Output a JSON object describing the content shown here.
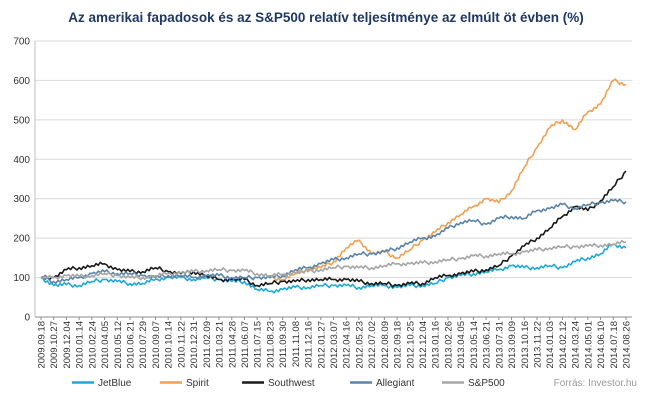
{
  "chart_data": {
    "type": "line",
    "title": "Az amerikai fapadosok és az S&P500 relatív teljesítménye  az elmúlt öt évben (%)",
    "source": "Forrás: Investor.hu",
    "ylim": [
      0,
      700
    ],
    "yticks": [
      "0",
      "100",
      "200",
      "300",
      "400",
      "500",
      "600",
      "700"
    ],
    "grid": true,
    "legend_position": "bottom",
    "x_tick_labels": [
      "2009.09.18",
      "2009.10.27",
      "2009.12.04",
      "2010.01.14",
      "2010.02.24",
      "2010.04.05",
      "2010.05.12",
      "2010.06.21",
      "2010.07.29",
      "2010.09.07",
      "2010.10.14",
      "2010.11.22",
      "2010.12.31",
      "2011.02.09",
      "2011.03.21",
      "2011.04.28",
      "2011.06.07",
      "2011.07.15",
      "2011.08.23",
      "2011.09.30",
      "2011.11.08",
      "2011.12.16",
      "2012.01.27",
      "2012.03.07",
      "2012.04.16",
      "2012.05.23",
      "2012.07.02",
      "2012.08.09",
      "2012.09.18",
      "2012.10.25",
      "2012.12.04",
      "2013.01.16",
      "2013.02.26",
      "2013.04.05",
      "2013.05.14",
      "2013.06.21",
      "2013.07.31",
      "2013.09.09",
      "2013.10.16",
      "2013.11.22",
      "2014.01.03",
      "2014.02.12",
      "2014.03.24",
      "2014.05.01",
      "2014.06.10",
      "2014.07.18",
      "2014.08.26"
    ],
    "series": [
      {
        "name": "JetBlue",
        "color": "#1fa9d6",
        "values": [
          100,
          80,
          82,
          80,
          90,
          95,
          90,
          85,
          85,
          95,
          100,
          100,
          95,
          100,
          95,
          90,
          90,
          70,
          65,
          70,
          75,
          75,
          80,
          80,
          80,
          75,
          80,
          80,
          75,
          80,
          80,
          85,
          100,
          105,
          110,
          115,
          120,
          130,
          125,
          125,
          130,
          125,
          140,
          150,
          160,
          185,
          175
        ]
      },
      {
        "name": "Spirit",
        "color": "#f0a050",
        "values": [
          null,
          null,
          null,
          null,
          null,
          null,
          null,
          null,
          null,
          null,
          null,
          null,
          null,
          null,
          null,
          null,
          null,
          null,
          100,
          95,
          110,
          120,
          125,
          140,
          175,
          195,
          160,
          165,
          150,
          170,
          195,
          215,
          240,
          260,
          280,
          300,
          290,
          320,
          380,
          430,
          480,
          500,
          475,
          520,
          540,
          600,
          590
        ]
      },
      {
        "name": "Southwest",
        "color": "#1a1a1a",
        "values": [
          100,
          100,
          120,
          125,
          130,
          135,
          120,
          115,
          115,
          125,
          115,
          110,
          115,
          105,
          95,
          95,
          95,
          80,
          85,
          90,
          90,
          95,
          95,
          95,
          95,
          90,
          85,
          85,
          80,
          85,
          85,
          100,
          105,
          110,
          115,
          120,
          130,
          155,
          180,
          200,
          225,
          255,
          280,
          270,
          295,
          330,
          370
        ]
      },
      {
        "name": "Allegiant",
        "color": "#5b84a8",
        "values": [
          100,
          90,
          95,
          100,
          110,
          115,
          110,
          110,
          105,
          100,
          105,
          105,
          100,
          105,
          105,
          100,
          100,
          100,
          100,
          105,
          120,
          125,
          135,
          145,
          150,
          160,
          160,
          165,
          175,
          190,
          200,
          205,
          225,
          240,
          245,
          235,
          250,
          255,
          250,
          270,
          275,
          285,
          275,
          285,
          290,
          295,
          292
        ]
      },
      {
        "name": "S&P500",
        "color": "#a6a6a6",
        "values": [
          100,
          100,
          105,
          103,
          105,
          110,
          105,
          100,
          100,
          105,
          110,
          112,
          115,
          118,
          120,
          118,
          118,
          110,
          105,
          108,
          112,
          115,
          120,
          125,
          128,
          125,
          125,
          130,
          135,
          135,
          137,
          140,
          145,
          148,
          155,
          155,
          160,
          160,
          165,
          170,
          175,
          178,
          178,
          180,
          182,
          185,
          190
        ]
      }
    ]
  }
}
